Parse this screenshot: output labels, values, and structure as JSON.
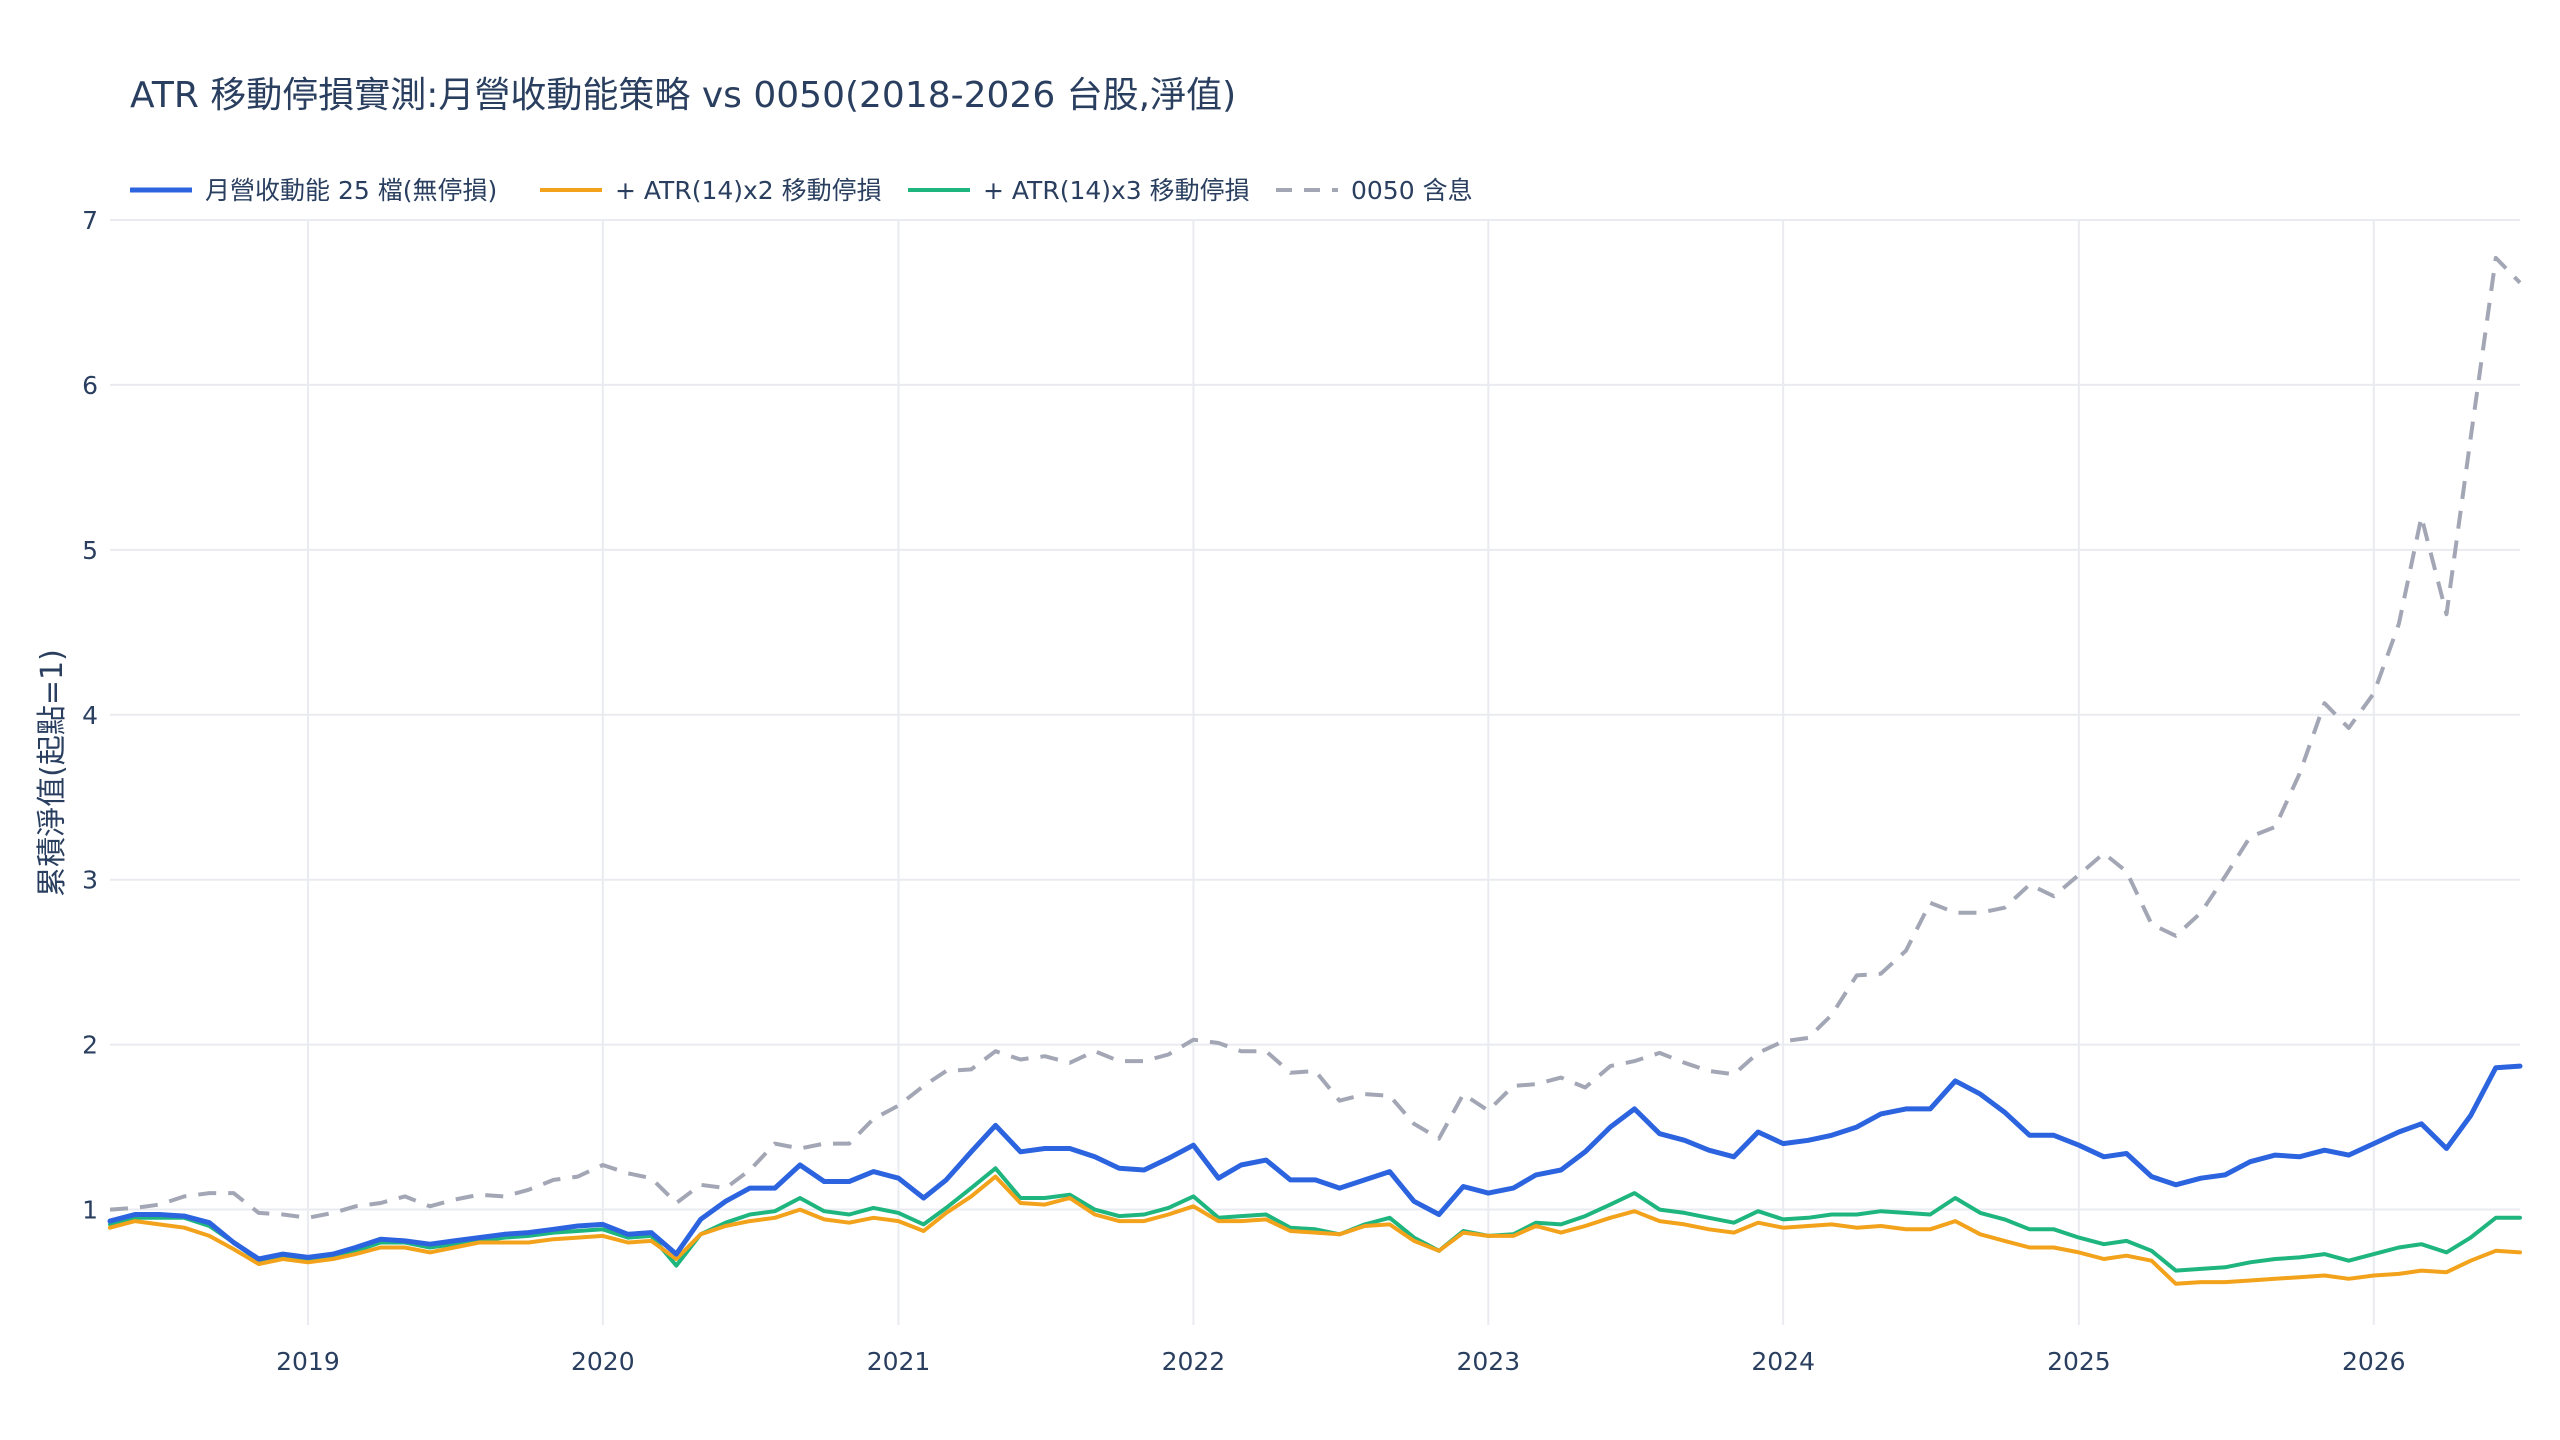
{
  "chart_data": {
    "type": "line",
    "title": "ATR 移動停損實測:月營收動能策略 vs 0050(2018-2026 台股,淨值)",
    "ylabel": "累積淨值(起點=1)",
    "xlabel": "",
    "x_range": [
      "2018-05-01",
      "2026-07-01"
    ],
    "ylim": [
      0.3,
      7.0
    ],
    "y_ticks": [
      1,
      2,
      3,
      4,
      5,
      6,
      7
    ],
    "x_ticks": [
      {
        "value": "2019-01-01",
        "label": "2019"
      },
      {
        "value": "2020-01-01",
        "label": "2020"
      },
      {
        "value": "2021-01-01",
        "label": "2021"
      },
      {
        "value": "2022-01-01",
        "label": "2022"
      },
      {
        "value": "2023-01-01",
        "label": "2023"
      },
      {
        "value": "2024-01-01",
        "label": "2024"
      },
      {
        "value": "2025-01-01",
        "label": "2025"
      },
      {
        "value": "2026-01-01",
        "label": "2026"
      }
    ],
    "grid": true,
    "legend_position": "top-left-horizontal",
    "start": "2018-05",
    "series": [
      {
        "name": "月營收動能 25 檔(無停損)",
        "color": "#2c64e0",
        "dash": "solid",
        "width": 5,
        "values": [
          0.93,
          0.97,
          0.97,
          0.96,
          0.92,
          0.8,
          0.7,
          0.73,
          0.71,
          0.73,
          0.77,
          0.82,
          0.81,
          0.79,
          0.81,
          0.83,
          0.85,
          0.86,
          0.88,
          0.9,
          0.91,
          0.85,
          0.86,
          0.73,
          0.94,
          1.05,
          1.13,
          1.13,
          1.27,
          1.17,
          1.17,
          1.23,
          1.19,
          1.07,
          1.18,
          1.35,
          1.51,
          1.35,
          1.37,
          1.37,
          1.32,
          1.25,
          1.24,
          1.31,
          1.39,
          1.19,
          1.27,
          1.3,
          1.18,
          1.18,
          1.13,
          1.18,
          1.23,
          1.05,
          0.97,
          1.14,
          1.1,
          1.13,
          1.21,
          1.24,
          1.35,
          1.5,
          1.61,
          1.46,
          1.42,
          1.36,
          1.32,
          1.47,
          1.4,
          1.42,
          1.45,
          1.5,
          1.58,
          1.61,
          1.61,
          1.78,
          1.7,
          1.59,
          1.45,
          1.45,
          1.39,
          1.32,
          1.34,
          1.2,
          1.15,
          1.19,
          1.21,
          1.29,
          1.33,
          1.32,
          1.36,
          1.33,
          1.4,
          1.47,
          1.52,
          1.37,
          1.57,
          1.86,
          1.87
        ]
      },
      {
        "name": "+ ATR(14)x2 移動停損",
        "color": "#f2a21b",
        "dash": "solid",
        "width": 4,
        "values": [
          0.89,
          0.93,
          0.91,
          0.89,
          0.84,
          0.76,
          0.67,
          0.7,
          0.68,
          0.7,
          0.73,
          0.77,
          0.77,
          0.74,
          0.77,
          0.8,
          0.8,
          0.8,
          0.82,
          0.83,
          0.84,
          0.8,
          0.81,
          0.7,
          0.85,
          0.9,
          0.93,
          0.95,
          1.0,
          0.94,
          0.92,
          0.95,
          0.93,
          0.87,
          0.98,
          1.08,
          1.2,
          1.04,
          1.03,
          1.07,
          0.97,
          0.93,
          0.93,
          0.97,
          1.02,
          0.93,
          0.93,
          0.94,
          0.87,
          0.86,
          0.85,
          0.9,
          0.91,
          0.81,
          0.75,
          0.86,
          0.84,
          0.84,
          0.9,
          0.86,
          0.9,
          0.95,
          0.99,
          0.93,
          0.91,
          0.88,
          0.86,
          0.92,
          0.89,
          0.9,
          0.91,
          0.89,
          0.9,
          0.88,
          0.88,
          0.93,
          0.85,
          0.81,
          0.77,
          0.77,
          0.74,
          0.7,
          0.72,
          0.69,
          0.55,
          0.56,
          0.56,
          0.57,
          0.58,
          0.59,
          0.6,
          0.58,
          0.6,
          0.61,
          0.63,
          0.62,
          0.69,
          0.75,
          0.74
        ]
      },
      {
        "name": "+ ATR(14)x3 移動停損",
        "color": "#1fb57f",
        "dash": "solid",
        "width": 4,
        "values": [
          0.91,
          0.95,
          0.95,
          0.95,
          0.9,
          0.8,
          0.69,
          0.71,
          0.69,
          0.72,
          0.75,
          0.8,
          0.8,
          0.77,
          0.79,
          0.81,
          0.83,
          0.84,
          0.86,
          0.87,
          0.88,
          0.83,
          0.84,
          0.66,
          0.85,
          0.92,
          0.97,
          0.99,
          1.07,
          0.99,
          0.97,
          1.01,
          0.98,
          0.91,
          1.01,
          1.13,
          1.25,
          1.07,
          1.07,
          1.09,
          1.0,
          0.96,
          0.97,
          1.01,
          1.08,
          0.95,
          0.96,
          0.97,
          0.89,
          0.88,
          0.85,
          0.91,
          0.95,
          0.83,
          0.75,
          0.87,
          0.84,
          0.85,
          0.92,
          0.91,
          0.96,
          1.03,
          1.1,
          1.0,
          0.98,
          0.95,
          0.92,
          0.99,
          0.94,
          0.95,
          0.97,
          0.97,
          0.99,
          0.98,
          0.97,
          1.07,
          0.98,
          0.94,
          0.88,
          0.88,
          0.83,
          0.79,
          0.81,
          0.75,
          0.63,
          0.64,
          0.65,
          0.68,
          0.7,
          0.71,
          0.73,
          0.69,
          0.73,
          0.77,
          0.79,
          0.74,
          0.83,
          0.95,
          0.95
        ]
      },
      {
        "name": "0050 含息",
        "color": "#a3a7b5",
        "dash": "dashed",
        "width": 4,
        "values": [
          1.0,
          1.01,
          1.03,
          1.08,
          1.1,
          1.1,
          0.98,
          0.97,
          0.95,
          0.98,
          1.02,
          1.04,
          1.08,
          1.02,
          1.06,
          1.09,
          1.08,
          1.12,
          1.18,
          1.2,
          1.27,
          1.22,
          1.19,
          1.04,
          1.15,
          1.13,
          1.24,
          1.4,
          1.37,
          1.4,
          1.4,
          1.55,
          1.63,
          1.75,
          1.84,
          1.85,
          1.96,
          1.91,
          1.93,
          1.89,
          1.96,
          1.9,
          1.9,
          1.94,
          2.03,
          2.01,
          1.96,
          1.96,
          1.83,
          1.84,
          1.66,
          1.7,
          1.69,
          1.52,
          1.43,
          1.7,
          1.6,
          1.75,
          1.76,
          1.8,
          1.74,
          1.87,
          1.9,
          1.95,
          1.89,
          1.84,
          1.82,
          1.95,
          2.02,
          2.04,
          2.18,
          2.42,
          2.43,
          2.57,
          2.86,
          2.8,
          2.8,
          2.83,
          2.97,
          2.9,
          3.03,
          3.16,
          3.05,
          2.73,
          2.66,
          2.8,
          3.02,
          3.26,
          3.32,
          3.64,
          4.07,
          3.92,
          4.13,
          4.55,
          5.2,
          4.61,
          5.68,
          6.77,
          6.62
        ]
      }
    ]
  }
}
